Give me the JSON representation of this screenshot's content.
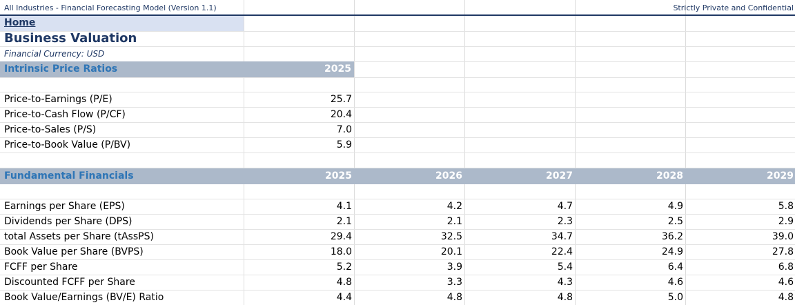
{
  "header": {
    "left_text": "All Industries - Financial Forecasting Model (Version 1.1)",
    "right_text": "Strictly Private and Confidential"
  },
  "nav": {
    "home_link": "Home"
  },
  "page": {
    "title": "Business Valuation",
    "currency": "Financial Currency: USD"
  },
  "intrinsic": {
    "section_label": "Intrinsic Price Ratios",
    "year": "2025",
    "rows": [
      {
        "label": "Price-to-Earnings (P/E)",
        "value": "25.7"
      },
      {
        "label": "Price-to-Cash Flow (P/CF)",
        "value": "20.4"
      },
      {
        "label": "Price-to-Sales (P/S)",
        "value": "7.0"
      },
      {
        "label": "Price-to-Book Value (P/BV)",
        "value": "5.9"
      }
    ]
  },
  "fundamentals": {
    "section_label": "Fundamental Financials",
    "years": [
      "2025",
      "2026",
      "2027",
      "2028",
      "2029"
    ],
    "rows": [
      {
        "label": "Earnings per Share (EPS)",
        "values": [
          "4.1",
          "4.2",
          "4.7",
          "4.9",
          "5.8"
        ]
      },
      {
        "label": "Dividends per Share (DPS)",
        "values": [
          "2.1",
          "2.1",
          "2.3",
          "2.5",
          "2.9"
        ]
      },
      {
        "label": "total Assets per Share (tAssPS)",
        "values": [
          "29.4",
          "32.5",
          "34.7",
          "36.2",
          "39.0"
        ]
      },
      {
        "label": "Book Value per Share (BVPS)",
        "values": [
          "18.0",
          "20.1",
          "22.4",
          "24.9",
          "27.8"
        ]
      },
      {
        "label": "FCFF per Share",
        "values": [
          "5.2",
          "3.9",
          "5.4",
          "6.4",
          "6.8"
        ]
      },
      {
        "label": "Discounted FCFF per Share",
        "values": [
          "4.8",
          "3.3",
          "4.3",
          "4.6",
          "4.6"
        ]
      },
      {
        "label": "Book Value/Earnings (BV/E) Ratio",
        "values": [
          "4.4",
          "4.8",
          "4.8",
          "5.0",
          "4.8"
        ]
      }
    ]
  }
}
